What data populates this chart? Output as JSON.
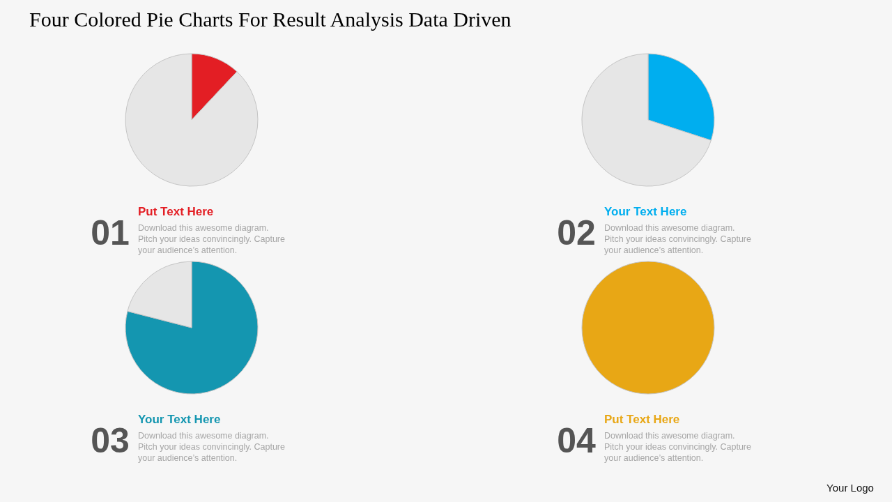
{
  "chart_data": [
    {
      "type": "other",
      "title": "Four Colored Pie Charts For Result Analysis Data Driven",
      "annotations": [
        "Your Logo"
      ]
    },
    {
      "type": "pie",
      "title": "Put Text Here",
      "subtitle": "Download this awesome diagram.\nPitch your ideas convincingly.  Capture\nyour audience’s attention.",
      "annotations": [
        "01"
      ],
      "categories": [
        null,
        null
      ],
      "values": [
        12,
        88
      ],
      "colors": [
        "#e31e24",
        "#e6e6e6"
      ]
    },
    {
      "type": "pie",
      "title": "Your Text Here",
      "subtitle": "Download this awesome diagram.\nPitch your ideas convincingly.  Capture\nyour audience’s attention.",
      "annotations": [
        "02"
      ],
      "categories": [
        null,
        null
      ],
      "values": [
        30,
        70
      ],
      "colors": [
        "#00aeef",
        "#e6e6e6"
      ]
    },
    {
      "type": "pie",
      "title": "Your Text Here",
      "subtitle": "Download this awesome diagram.\nPitch your ideas convincingly.  Capture\nyour audience’s attention.",
      "annotations": [
        "03"
      ],
      "categories": [
        null,
        null
      ],
      "values": [
        79,
        21
      ],
      "colors": [
        "#1496b0",
        "#e6e6e6"
      ]
    },
    {
      "type": "pie",
      "title": "Put Text Here",
      "subtitle": "Download this awesome diagram.\nPitch your ideas convincingly.  Capture\nyour audience’s attention.",
      "annotations": [
        "04"
      ],
      "categories": [
        null
      ],
      "values": [
        100
      ],
      "colors": [
        "#e8a715"
      ]
    }
  ]
}
